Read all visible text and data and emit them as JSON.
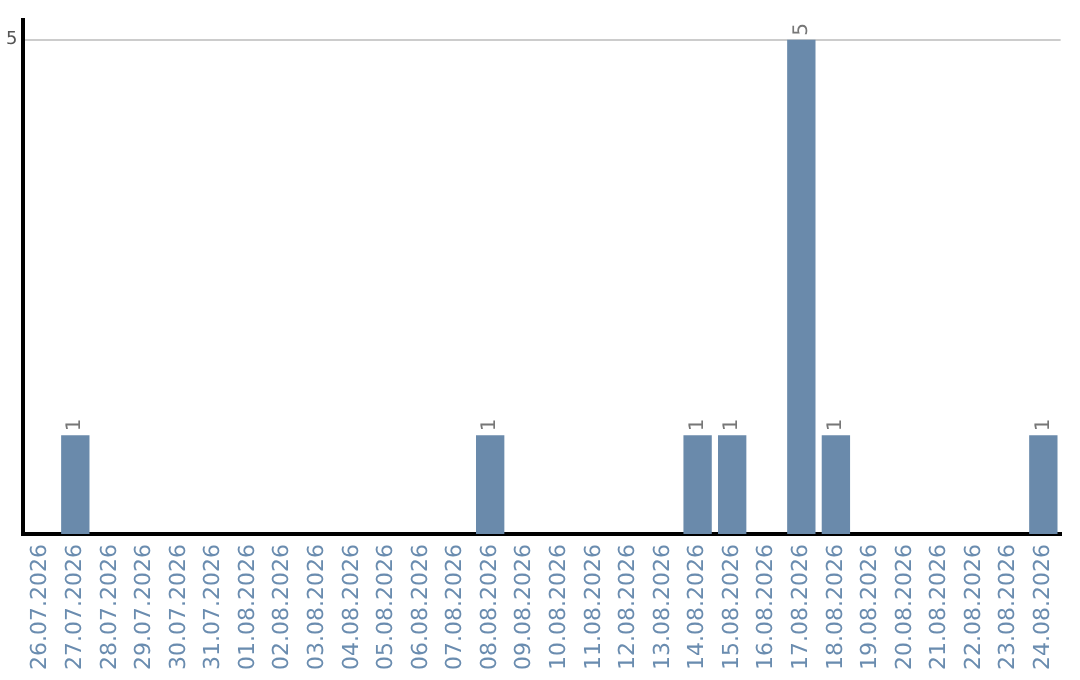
{
  "chart_data": {
    "type": "bar",
    "categories": [
      "26.07.2026",
      "27.07.2026",
      "28.07.2026",
      "29.07.2026",
      "30.07.2026",
      "31.07.2026",
      "01.08.2026",
      "02.08.2026",
      "03.08.2026",
      "04.08.2026",
      "05.08.2026",
      "06.08.2026",
      "07.08.2026",
      "08.08.2026",
      "09.08.2026",
      "10.08.2026",
      "11.08.2026",
      "12.08.2026",
      "13.08.2026",
      "14.08.2026",
      "15.08.2026",
      "16.08.2026",
      "17.08.2026",
      "18.08.2026",
      "19.08.2026",
      "20.08.2026",
      "21.08.2026",
      "22.08.2026",
      "23.08.2026",
      "24.08.2026"
    ],
    "values": [
      0,
      1,
      0,
      0,
      0,
      0,
      0,
      0,
      0,
      0,
      0,
      0,
      0,
      1,
      0,
      0,
      0,
      0,
      0,
      1,
      1,
      0,
      5,
      1,
      0,
      0,
      0,
      0,
      0,
      1
    ],
    "value_labels": [
      null,
      "1",
      null,
      null,
      null,
      null,
      null,
      null,
      null,
      null,
      null,
      null,
      null,
      "1",
      null,
      null,
      null,
      null,
      null,
      "1",
      "1",
      null,
      "5",
      "1",
      null,
      null,
      null,
      null,
      null,
      "1"
    ],
    "color": "#6a8aab",
    "ylim": [
      0,
      5.2
    ],
    "yticks": [
      5
    ],
    "grid": "y",
    "legend": false
  }
}
